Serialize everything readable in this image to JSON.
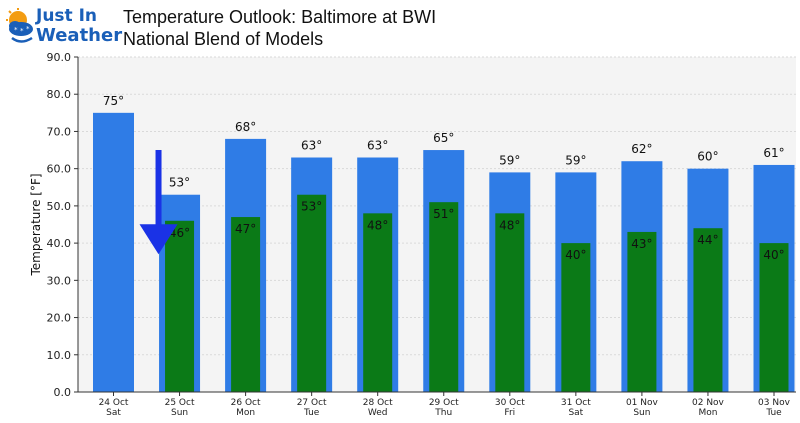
{
  "logo": {
    "line1": "Just In",
    "line2": "Weather"
  },
  "header": {
    "title": "Temperature Outlook: Baltimore at BWI",
    "subtitle": "National Blend of Models"
  },
  "colors": {
    "high": "#2f7ce6",
    "low": "#0b7a17",
    "arrow": "#1a32e6",
    "plot_bg": "#f4f4f4",
    "logo_blue": "#1a5fb8",
    "logo_orange": "#f39c12"
  },
  "icons": {
    "logo": "sun-cloud-icon",
    "trend": "down-arrow-icon"
  },
  "chart_data": {
    "type": "bar",
    "title": "Temperature Outlook: Baltimore at BWI",
    "subtitle": "National Blend of Models",
    "ylabel": "Temperature [°F]",
    "ylim": [
      0,
      90
    ],
    "yticks": [
      "0.0",
      "10.0",
      "20.0",
      "30.0",
      "40.0",
      "50.0",
      "60.0",
      "70.0",
      "80.0",
      "90.0"
    ],
    "grid": true,
    "categories": [
      [
        "24 Oct",
        "Sat"
      ],
      [
        "25 Oct",
        "Sun"
      ],
      [
        "26 Oct",
        "Mon"
      ],
      [
        "27 Oct",
        "Tue"
      ],
      [
        "28 Oct",
        "Wed"
      ],
      [
        "29 Oct",
        "Thu"
      ],
      [
        "30 Oct",
        "Fri"
      ],
      [
        "31 Oct",
        "Sat"
      ],
      [
        "01 Nov",
        "Sun"
      ],
      [
        "02 Nov",
        "Mon"
      ],
      [
        "03 Nov",
        "Tue"
      ]
    ],
    "series": [
      {
        "values": [
          75,
          53,
          68,
          63,
          63,
          65,
          59,
          59,
          62,
          60,
          61
        ],
        "labels": [
          "75°",
          "53°",
          "68°",
          "63°",
          "63°",
          "65°",
          "59°",
          "59°",
          "62°",
          "60°",
          "61°"
        ]
      },
      {
        "values": [
          null,
          46,
          47,
          53,
          48,
          51,
          48,
          40,
          43,
          44,
          40
        ],
        "labels": [
          "",
          "46°",
          "47°",
          "53°",
          "48°",
          "51°",
          "48°",
          "40°",
          "43°",
          "44°",
          "40°"
        ]
      }
    ],
    "annotations": [
      {
        "type": "arrow",
        "direction": "down",
        "from_y": 65,
        "to_y": 37,
        "between": [
          0,
          1
        ]
      }
    ]
  }
}
